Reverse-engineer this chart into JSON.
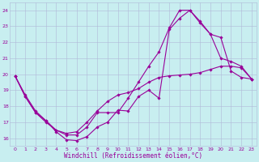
{
  "xlabel": "Windchill (Refroidissement éolien,°C)",
  "ylabel": "",
  "bg_color": "#c8eef0",
  "line_color": "#990099",
  "grid_color": "#b0b8d8",
  "xlim": [
    -0.5,
    23.5
  ],
  "ylim": [
    15.5,
    24.5
  ],
  "xticks": [
    0,
    1,
    2,
    3,
    4,
    5,
    6,
    7,
    8,
    9,
    10,
    11,
    12,
    13,
    14,
    15,
    16,
    17,
    18,
    19,
    20,
    21,
    22,
    23
  ],
  "yticks": [
    16,
    17,
    18,
    19,
    20,
    21,
    22,
    23,
    24
  ],
  "line1_x": [
    0,
    1,
    2,
    3,
    4,
    5,
    6,
    7,
    8,
    9,
    10,
    11,
    12,
    13,
    14,
    15,
    16,
    17,
    18,
    19,
    20,
    21,
    22,
    23
  ],
  "line1_y": [
    19.9,
    18.7,
    17.7,
    17.1,
    16.4,
    15.9,
    15.85,
    16.1,
    16.7,
    17.0,
    17.75,
    17.7,
    18.6,
    19.0,
    18.5,
    22.8,
    23.5,
    24.0,
    23.3,
    22.5,
    22.3,
    20.2,
    19.8,
    19.7
  ],
  "line2_x": [
    0,
    1,
    2,
    3,
    4,
    5,
    6,
    7,
    8,
    9,
    10,
    11,
    12,
    13,
    14,
    15,
    16,
    17,
    18,
    19,
    20,
    21,
    22,
    23
  ],
  "line2_y": [
    19.9,
    18.6,
    17.6,
    17.0,
    16.5,
    16.2,
    16.2,
    16.7,
    17.6,
    17.6,
    17.6,
    18.5,
    19.5,
    20.5,
    21.4,
    22.9,
    24.0,
    24.0,
    23.2,
    22.5,
    21.0,
    20.8,
    20.5,
    19.7
  ],
  "line3_x": [
    0,
    1,
    2,
    3,
    4,
    5,
    6,
    7,
    8,
    9,
    10,
    11,
    12,
    13,
    14,
    15,
    16,
    17,
    18,
    19,
    20,
    21,
    22,
    23
  ],
  "line3_y": [
    19.9,
    18.6,
    17.6,
    17.1,
    16.5,
    16.3,
    16.4,
    17.0,
    17.7,
    18.3,
    18.7,
    18.85,
    19.1,
    19.5,
    19.8,
    19.9,
    19.95,
    20.0,
    20.1,
    20.3,
    20.5,
    20.5,
    20.4,
    19.7
  ],
  "marker": "D",
  "markersize": 1.8,
  "linewidth": 0.8,
  "tick_fontsize": 4.5,
  "xlabel_fontsize": 5.5,
  "tick_color": "#990099",
  "label_color": "#990099"
}
